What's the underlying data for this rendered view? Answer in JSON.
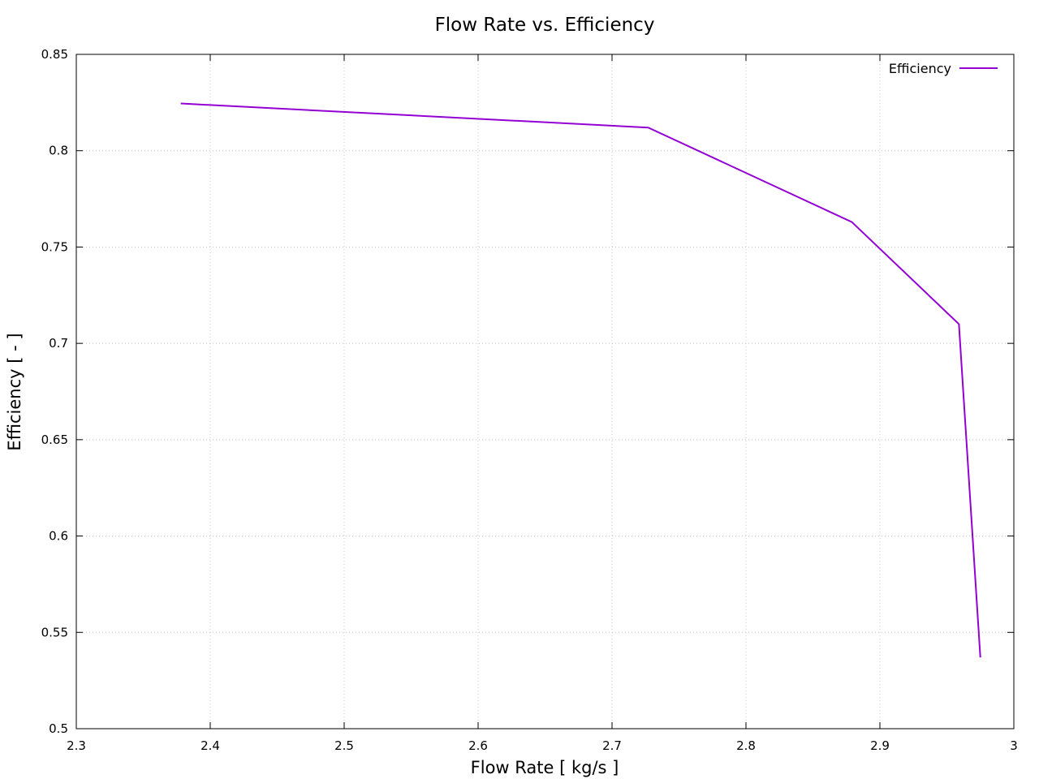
{
  "chart_data": {
    "type": "line",
    "title": "Flow Rate  vs. Efficiency",
    "xlabel": "Flow Rate [ kg/s ]",
    "ylabel": "Efficiency [ - ]",
    "xlim": [
      2.3,
      3.0
    ],
    "ylim": [
      0.5,
      0.85
    ],
    "xticks": [
      2.3,
      2.4,
      2.5,
      2.6,
      2.7,
      2.8,
      2.9,
      3.0
    ],
    "xtick_labels": [
      "2.3",
      "2.4",
      "2.5",
      "2.6",
      "2.7",
      "2.8",
      "2.9",
      "3"
    ],
    "yticks": [
      0.5,
      0.55,
      0.6,
      0.65,
      0.7,
      0.75,
      0.8,
      0.85
    ],
    "ytick_labels": [
      "0.5",
      "0.55",
      "0.6",
      "0.65",
      "0.7",
      "0.75",
      "0.8",
      "0.85"
    ],
    "grid": true,
    "legend_position": "top-right",
    "series": [
      {
        "name": "Efficiency",
        "color": "#9400d3",
        "x": [
          2.378,
          2.727,
          2.879,
          2.959,
          2.975
        ],
        "y": [
          0.8245,
          0.812,
          0.763,
          0.71,
          0.537
        ]
      }
    ]
  }
}
